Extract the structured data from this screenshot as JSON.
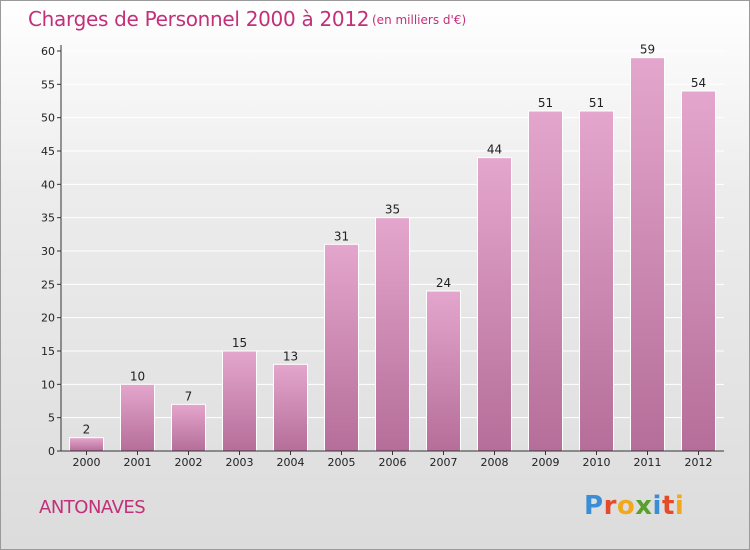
{
  "header": {
    "title": "Charges de Personnel 2000 à 2012",
    "subtitle": "(en milliers d'€)"
  },
  "footer": {
    "location": "ANTONAVES",
    "brand": "Proxiti",
    "brand_colors": [
      "#3b8ed6",
      "#e34b2a",
      "#f2a81d",
      "#5aa02c",
      "#3b8ed6",
      "#e34b2a",
      "#f2a81d"
    ]
  },
  "colors": {
    "accent": "#c2307a",
    "bar_top": "#e4a6cd",
    "bar_bottom": "#b56e99",
    "axis": "#333333",
    "grid": "#ffffff"
  },
  "chart_data": {
    "type": "bar",
    "title": "Charges de Personnel 2000 à 2012",
    "subtitle": "(en milliers d'€)",
    "categories": [
      "2000",
      "2001",
      "2002",
      "2003",
      "2004",
      "2005",
      "2006",
      "2007",
      "2008",
      "2009",
      "2010",
      "2011",
      "2012"
    ],
    "values": [
      2,
      10,
      7,
      15,
      13,
      31,
      35,
      24,
      44,
      51,
      51,
      59,
      54
    ],
    "xlabel": "",
    "ylabel": "",
    "ylim": [
      0,
      60
    ],
    "yticks": [
      0,
      5,
      10,
      15,
      20,
      25,
      30,
      35,
      40,
      45,
      50,
      55,
      60
    ],
    "grid": true,
    "data_labels": true
  }
}
